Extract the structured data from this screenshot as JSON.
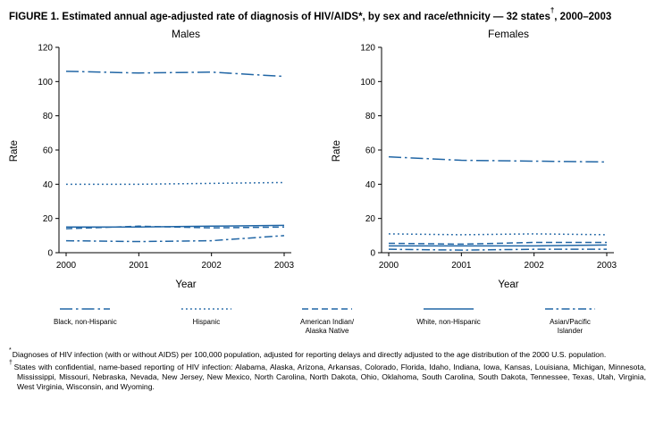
{
  "figure": {
    "title_main": "FIGURE 1. Estimated annual age-adjusted rate of diagnosis of HIV/AIDS*, by sex and race/ethnicity — 32 states",
    "title_sup": "†",
    "title_tail": ", 2000–2003"
  },
  "colors": {
    "line": "#2166A5",
    "axis": "#000000"
  },
  "chart_data": [
    {
      "type": "line",
      "title": "Males",
      "xlabel": "Year",
      "ylabel": "Rate",
      "x": [
        2000,
        2001,
        2002,
        2003
      ],
      "ylim": [
        0,
        120
      ],
      "yticks": [
        0,
        20,
        40,
        60,
        80,
        100,
        120
      ],
      "series": [
        {
          "name": "Black, non-Hispanic",
          "style": "dashdot",
          "values": [
            106,
            105,
            105.5,
            103
          ]
        },
        {
          "name": "Hispanic",
          "style": "dotted",
          "values": [
            40,
            40,
            40.5,
            41
          ]
        },
        {
          "name": "American Indian/Alaska Native",
          "style": "dashed",
          "values": [
            14,
            15.5,
            14.5,
            15
          ]
        },
        {
          "name": "White, non-Hispanic",
          "style": "solid",
          "values": [
            15,
            15,
            15.5,
            16
          ]
        },
        {
          "name": "Asian/Pacific Islander",
          "style": "dashdot2",
          "values": [
            7,
            6.5,
            7,
            10
          ]
        }
      ]
    },
    {
      "type": "line",
      "title": "Females",
      "xlabel": "Year",
      "ylabel": "Rate",
      "x": [
        2000,
        2001,
        2002,
        2003
      ],
      "ylim": [
        0,
        120
      ],
      "yticks": [
        0,
        20,
        40,
        60,
        80,
        100,
        120
      ],
      "series": [
        {
          "name": "Black, non-Hispanic",
          "style": "dashdot",
          "values": [
            56,
            54,
            53.5,
            53
          ]
        },
        {
          "name": "Hispanic",
          "style": "dotted",
          "values": [
            11,
            10.5,
            11,
            10.5
          ]
        },
        {
          "name": "American Indian/Alaska Native",
          "style": "dashed",
          "values": [
            5.5,
            5,
            6,
            6
          ]
        },
        {
          "name": "White, non-Hispanic",
          "style": "solid",
          "values": [
            4,
            4,
            4,
            4.5
          ]
        },
        {
          "name": "Asian/Pacific Islander",
          "style": "dashdot2",
          "values": [
            2,
            1.5,
            2,
            2
          ]
        }
      ]
    }
  ],
  "legend": {
    "items": [
      {
        "label": "Black, non-Hispanic",
        "style": "dashdot"
      },
      {
        "label": "Hispanic",
        "style": "dotted"
      },
      {
        "label": "American Indian/\nAlaska Native",
        "style": "dashed"
      },
      {
        "label": "White, non-Hispanic",
        "style": "solid"
      },
      {
        "label": "Asian/Pacific\nIslander",
        "style": "dashdot2"
      }
    ]
  },
  "footnotes": [
    {
      "marker": "*",
      "text": "Diagnoses of HIV infection (with or without AIDS) per 100,000 population, adjusted for reporting delays and directly adjusted to the age distribution of the 2000 U.S. population."
    },
    {
      "marker": "†",
      "text": "States with confidential, name-based reporting of HIV infection: Alabama, Alaska, Arizona, Arkansas, Colorado, Florida, Idaho, Indiana, Iowa, Kansas, Louisiana, Michigan, Minnesota, Mississippi, Missouri, Nebraska, Nevada, New Jersey, New Mexico, North Carolina, North Dakota, Ohio, Oklahoma, South Carolina, South Dakota, Tennessee, Texas, Utah, Virginia, West Virginia, Wisconsin, and Wyoming."
    }
  ]
}
